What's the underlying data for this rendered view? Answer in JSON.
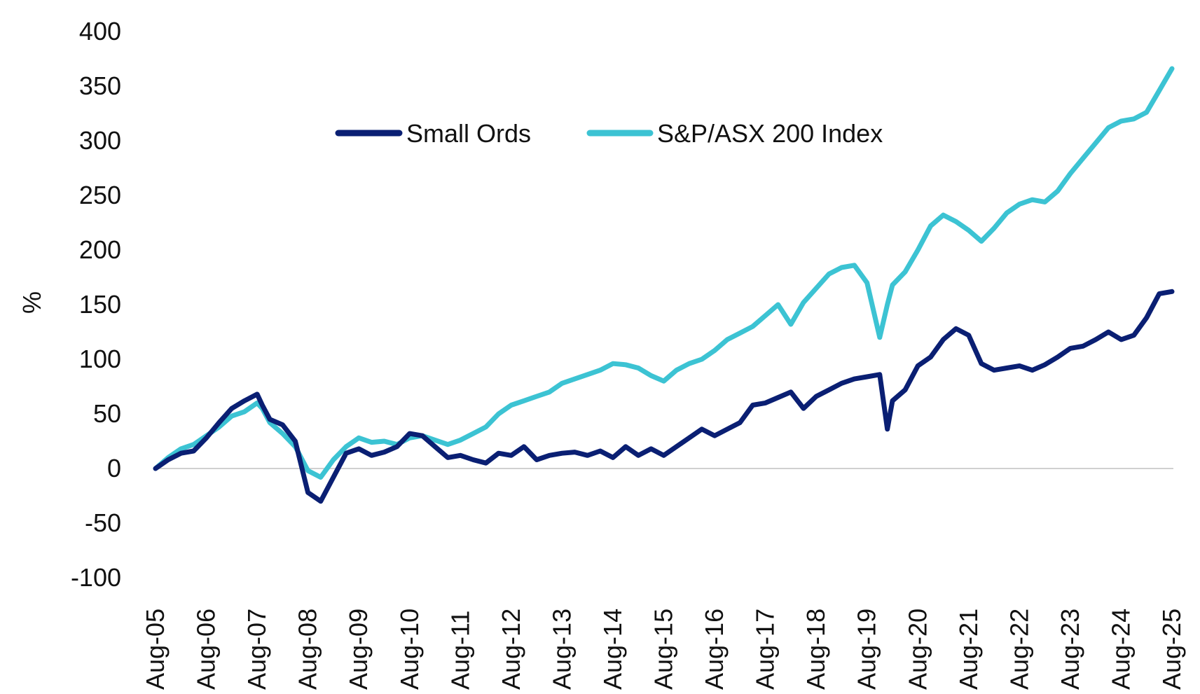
{
  "chart_data": {
    "type": "line",
    "title": "",
    "xlabel": "",
    "ylabel": "%",
    "ylim": [
      -100,
      400
    ],
    "yticks": [
      400,
      350,
      300,
      250,
      200,
      150,
      100,
      50,
      0,
      -50,
      -100
    ],
    "categories": [
      "Aug-05",
      "Aug-06",
      "Aug-07",
      "Aug-08",
      "Aug-09",
      "Aug-10",
      "Aug-11",
      "Aug-12",
      "Aug-13",
      "Aug-14",
      "Aug-15",
      "Aug-16",
      "Aug-17",
      "Aug-18",
      "Aug-19",
      "Aug-20",
      "Aug-21",
      "Aug-22",
      "Aug-23",
      "Aug-24",
      "Aug-25"
    ],
    "grid": false,
    "zero_line": true,
    "legend_position": "top-center",
    "x": [
      0,
      0.25,
      0.5,
      0.75,
      1,
      1.25,
      1.5,
      1.75,
      2,
      2.1,
      2.25,
      2.5,
      2.75,
      3,
      3.25,
      3.5,
      3.75,
      4,
      4.25,
      4.5,
      4.75,
      5,
      5.25,
      5.5,
      5.75,
      6,
      6.25,
      6.5,
      6.75,
      7,
      7.25,
      7.5,
      7.75,
      8,
      8.25,
      8.5,
      8.75,
      9,
      9.25,
      9.5,
      9.75,
      10,
      10.25,
      10.5,
      10.75,
      11,
      11.25,
      11.5,
      11.75,
      12,
      12.25,
      12.5,
      12.75,
      13,
      13.25,
      13.5,
      13.75,
      14,
      14.25,
      14.4,
      14.5,
      14.75,
      15,
      15.25,
      15.5,
      15.75,
      16,
      16.25,
      16.5,
      16.75,
      17,
      17.25,
      17.5,
      17.75,
      18,
      18.25,
      18.5,
      18.75,
      19,
      19.25,
      19.5,
      19.75,
      20
    ],
    "series": [
      {
        "name": "Small Ords",
        "color": "#0a1f73",
        "values": [
          0,
          8,
          14,
          16,
          28,
          42,
          55,
          62,
          68,
          58,
          45,
          40,
          25,
          -22,
          -30,
          -8,
          14,
          18,
          12,
          15,
          20,
          32,
          30,
          20,
          10,
          12,
          8,
          5,
          14,
          12,
          20,
          8,
          12,
          14,
          15,
          12,
          16,
          10,
          20,
          12,
          18,
          12,
          20,
          28,
          36,
          30,
          36,
          42,
          58,
          60,
          65,
          70,
          55,
          66,
          72,
          78,
          82,
          84,
          86,
          36,
          62,
          72,
          94,
          102,
          118,
          128,
          122,
          96,
          90,
          92,
          94,
          90,
          95,
          102,
          110,
          112,
          118,
          125,
          118,
          122,
          138,
          160,
          162
        ],
        "lw": 7
      },
      {
        "name": "S&P/ASX 200 Index",
        "color": "#3cc3d3",
        "values": [
          0,
          10,
          18,
          22,
          30,
          38,
          48,
          52,
          60,
          55,
          42,
          32,
          20,
          -2,
          -8,
          8,
          20,
          28,
          24,
          25,
          22,
          28,
          30,
          26,
          22,
          26,
          32,
          38,
          50,
          58,
          62,
          66,
          70,
          78,
          82,
          86,
          90,
          96,
          95,
          92,
          85,
          80,
          90,
          96,
          100,
          108,
          118,
          124,
          130,
          140,
          150,
          132,
          152,
          165,
          178,
          184,
          186,
          170,
          120,
          150,
          168,
          180,
          200,
          222,
          232,
          226,
          218,
          208,
          220,
          234,
          242,
          246,
          244,
          254,
          270,
          284,
          298,
          312,
          318,
          320,
          326,
          346,
          366
        ]
      }
    ]
  },
  "legend": {
    "items": [
      "Small Ords",
      "S&P/ASX 200 Index"
    ]
  }
}
